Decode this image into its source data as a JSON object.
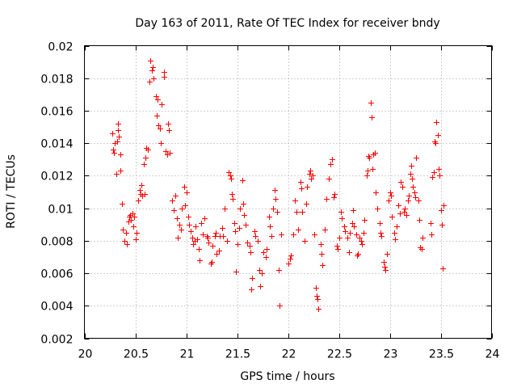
{
  "chart_data": {
    "type": "scatter",
    "title": "Day 163 of 2011, Rate Of TEC Index for receiver bndy",
    "xlabel": "GPS time / hours",
    "ylabel": "ROTI / TECUs",
    "xlim": [
      20,
      24
    ],
    "ylim": [
      0.002,
      0.02
    ],
    "xticks": [
      20,
      20.5,
      21,
      21.5,
      22,
      22.5,
      23,
      23.5,
      24
    ],
    "xtick_labels": [
      "20",
      "20.5",
      "21",
      "21.5",
      "22",
      "22.5",
      "23",
      "23.5",
      "24"
    ],
    "yticks": [
      0.002,
      0.004,
      0.006,
      0.008,
      0.01,
      0.012,
      0.014,
      0.016,
      0.018,
      0.02
    ],
    "ytick_labels": [
      "0.002",
      "0.004",
      "0.006",
      "0.008",
      "0.01",
      "0.012",
      "0.014",
      "0.016",
      "0.018",
      "0.02"
    ],
    "grid": true,
    "marker": "+",
    "color": "#ff0000",
    "series": [
      {
        "name": "ROTI",
        "points": [
          [
            20.27,
            0.0146
          ],
          [
            20.28,
            0.0136
          ],
          [
            20.29,
            0.0134
          ],
          [
            20.3,
            0.014
          ],
          [
            20.31,
            0.0121
          ],
          [
            20.32,
            0.0141
          ],
          [
            20.33,
            0.0152
          ],
          [
            20.33,
            0.0148
          ],
          [
            20.34,
            0.0144
          ],
          [
            20.35,
            0.0133
          ],
          [
            20.35,
            0.0123
          ],
          [
            20.37,
            0.0103
          ],
          [
            20.38,
            0.0087
          ],
          [
            20.39,
            0.008
          ],
          [
            20.41,
            0.0085
          ],
          [
            20.42,
            0.0078
          ],
          [
            20.43,
            0.0092
          ],
          [
            20.44,
            0.0095
          ],
          [
            20.45,
            0.0096
          ],
          [
            20.46,
            0.0093
          ],
          [
            20.47,
            0.0097
          ],
          [
            20.48,
            0.0089
          ],
          [
            20.49,
            0.0095
          ],
          [
            20.5,
            0.0081
          ],
          [
            20.51,
            0.0085
          ],
          [
            20.53,
            0.0105
          ],
          [
            20.54,
            0.0111
          ],
          [
            20.55,
            0.0109
          ],
          [
            20.56,
            0.0114
          ],
          [
            20.57,
            0.0108
          ],
          [
            20.58,
            0.0127
          ],
          [
            20.59,
            0.0109
          ],
          [
            20.6,
            0.0131
          ],
          [
            20.61,
            0.0137
          ],
          [
            20.62,
            0.0136
          ],
          [
            20.64,
            0.0178
          ],
          [
            20.65,
            0.0191
          ],
          [
            20.66,
            0.0185
          ],
          [
            20.67,
            0.0187
          ],
          [
            20.68,
            0.018
          ],
          [
            20.7,
            0.0169
          ],
          [
            20.71,
            0.0157
          ],
          [
            20.72,
            0.0167
          ],
          [
            20.73,
            0.0151
          ],
          [
            20.74,
            0.0149
          ],
          [
            20.75,
            0.014
          ],
          [
            20.76,
            0.0164
          ],
          [
            20.78,
            0.0184
          ],
          [
            20.78,
            0.0181
          ],
          [
            20.8,
            0.0135
          ],
          [
            20.81,
            0.0133
          ],
          [
            20.82,
            0.0152
          ],
          [
            20.83,
            0.0148
          ],
          [
            20.84,
            0.0134
          ],
          [
            20.86,
            0.0105
          ],
          [
            20.88,
            0.0099
          ],
          [
            20.89,
            0.0108
          ],
          [
            20.91,
            0.0094
          ],
          [
            20.92,
            0.0082
          ],
          [
            20.93,
            0.009
          ],
          [
            20.95,
            0.0087
          ],
          [
            20.96,
            0.01
          ],
          [
            20.98,
            0.0113
          ],
          [
            20.99,
            0.0102
          ],
          [
            21.0,
            0.011
          ],
          [
            21.02,
            0.0095
          ],
          [
            21.03,
            0.009
          ],
          [
            21.04,
            0.0086
          ],
          [
            21.06,
            0.0082
          ],
          [
            21.07,
            0.0078
          ],
          [
            21.08,
            0.008
          ],
          [
            21.09,
            0.0089
          ],
          [
            21.11,
            0.0081
          ],
          [
            21.12,
            0.0075
          ],
          [
            21.13,
            0.0068
          ],
          [
            21.15,
            0.0091
          ],
          [
            21.16,
            0.0084
          ],
          [
            21.18,
            0.0094
          ],
          [
            21.2,
            0.0083
          ],
          [
            21.21,
            0.0082
          ],
          [
            21.22,
            0.0079
          ],
          [
            21.24,
            0.0066
          ],
          [
            21.25,
            0.0067
          ],
          [
            21.26,
            0.0077
          ],
          [
            21.28,
            0.0083
          ],
          [
            21.29,
            0.0085
          ],
          [
            21.3,
            0.0072
          ],
          [
            21.32,
            0.0074
          ],
          [
            21.33,
            0.0083
          ],
          [
            21.35,
            0.0088
          ],
          [
            21.36,
            0.0083
          ],
          [
            21.38,
            0.01
          ],
          [
            21.4,
            0.008
          ],
          [
            21.42,
            0.0122
          ],
          [
            21.43,
            0.012
          ],
          [
            21.44,
            0.0118
          ],
          [
            21.45,
            0.0109
          ],
          [
            21.46,
            0.0106
          ],
          [
            21.47,
            0.0091
          ],
          [
            21.48,
            0.0086
          ],
          [
            21.49,
            0.0061
          ],
          [
            21.5,
            0.0078
          ],
          [
            21.52,
            0.0088
          ],
          [
            21.53,
            0.01
          ],
          [
            21.55,
            0.0117
          ],
          [
            21.56,
            0.0103
          ],
          [
            21.57,
            0.0096
          ],
          [
            21.58,
            0.009
          ],
          [
            21.6,
            0.0079
          ],
          [
            21.62,
            0.0077
          ],
          [
            21.63,
            0.0073
          ],
          [
            21.64,
            0.005
          ],
          [
            21.65,
            0.0057
          ],
          [
            21.67,
            0.0086
          ],
          [
            21.68,
            0.0083
          ],
          [
            21.7,
            0.008
          ],
          [
            21.72,
            0.0062
          ],
          [
            21.73,
            0.0052
          ],
          [
            21.74,
            0.006
          ],
          [
            21.76,
            0.0073
          ],
          [
            21.78,
            0.007
          ],
          [
            21.79,
            0.0075
          ],
          [
            21.81,
            0.0095
          ],
          [
            21.82,
            0.0089
          ],
          [
            21.84,
            0.0083
          ],
          [
            21.85,
            0.01
          ],
          [
            21.87,
            0.0111
          ],
          [
            21.88,
            0.0106
          ],
          [
            21.89,
            0.0098
          ],
          [
            21.91,
            0.0062
          ],
          [
            21.92,
            0.004
          ],
          [
            21.93,
            0.0084
          ],
          [
            22.0,
            0.0066
          ],
          [
            22.02,
            0.0069
          ],
          [
            22.03,
            0.0071
          ],
          [
            22.05,
            0.0084
          ],
          [
            22.07,
            0.0105
          ],
          [
            22.08,
            0.0098
          ],
          [
            22.1,
            0.0087
          ],
          [
            22.12,
            0.0116
          ],
          [
            22.13,
            0.0112
          ],
          [
            22.14,
            0.0098
          ],
          [
            22.16,
            0.008
          ],
          [
            22.18,
            0.0103
          ],
          [
            22.19,
            0.0113
          ],
          [
            22.21,
            0.0121
          ],
          [
            22.22,
            0.0123
          ],
          [
            22.23,
            0.0118
          ],
          [
            22.24,
            0.012
          ],
          [
            22.26,
            0.0084
          ],
          [
            22.27,
            0.0051
          ],
          [
            22.28,
            0.0046
          ],
          [
            22.29,
            0.0044
          ],
          [
            22.3,
            0.0038
          ],
          [
            22.32,
            0.0078
          ],
          [
            22.33,
            0.0072
          ],
          [
            22.34,
            0.0065
          ],
          [
            22.36,
            0.0087
          ],
          [
            22.38,
            0.0106
          ],
          [
            22.4,
            0.0118
          ],
          [
            22.42,
            0.0127
          ],
          [
            22.43,
            0.013
          ],
          [
            22.45,
            0.0107
          ],
          [
            22.46,
            0.0109
          ],
          [
            22.48,
            0.0077
          ],
          [
            22.49,
            0.0075
          ],
          [
            22.5,
            0.0082
          ],
          [
            22.52,
            0.0098
          ],
          [
            22.53,
            0.0094
          ],
          [
            22.55,
            0.0089
          ],
          [
            22.56,
            0.0086
          ],
          [
            22.58,
            0.0082
          ],
          [
            22.6,
            0.0073
          ],
          [
            22.61,
            0.0085
          ],
          [
            22.63,
            0.0091
          ],
          [
            22.64,
            0.0099
          ],
          [
            22.65,
            0.0089
          ],
          [
            22.67,
            0.0084
          ],
          [
            22.68,
            0.0071
          ],
          [
            22.69,
            0.0072
          ],
          [
            22.7,
            0.0082
          ],
          [
            22.72,
            0.008
          ],
          [
            22.73,
            0.0078
          ],
          [
            22.74,
            0.0085
          ],
          [
            22.75,
            0.0093
          ],
          [
            22.77,
            0.012
          ],
          [
            22.78,
            0.0123
          ],
          [
            22.79,
            0.0132
          ],
          [
            22.8,
            0.0131
          ],
          [
            22.81,
            0.0165
          ],
          [
            22.82,
            0.0156
          ],
          [
            22.83,
            0.0124
          ],
          [
            22.84,
            0.0133
          ],
          [
            22.85,
            0.0134
          ],
          [
            22.86,
            0.011
          ],
          [
            22.88,
            0.01
          ],
          [
            22.9,
            0.0091
          ],
          [
            22.91,
            0.0085
          ],
          [
            22.92,
            0.0083
          ],
          [
            22.94,
            0.0067
          ],
          [
            22.95,
            0.0064
          ],
          [
            22.96,
            0.0062
          ],
          [
            22.97,
            0.0072
          ],
          [
            22.99,
            0.0105
          ],
          [
            23.0,
            0.011
          ],
          [
            23.01,
            0.0108
          ],
          [
            23.02,
            0.0095
          ],
          [
            23.04,
            0.0085
          ],
          [
            23.05,
            0.0081
          ],
          [
            23.07,
            0.0089
          ],
          [
            23.08,
            0.0102
          ],
          [
            23.1,
            0.0097
          ],
          [
            23.11,
            0.0116
          ],
          [
            23.12,
            0.0113
          ],
          [
            23.14,
            0.0098
          ],
          [
            23.15,
            0.01
          ],
          [
            23.16,
            0.0096
          ],
          [
            23.18,
            0.0105
          ],
          [
            23.19,
            0.0108
          ],
          [
            23.2,
            0.0121
          ],
          [
            23.21,
            0.0126
          ],
          [
            23.22,
            0.0118
          ],
          [
            23.23,
            0.0113
          ],
          [
            23.24,
            0.011
          ],
          [
            23.25,
            0.0107
          ],
          [
            23.26,
            0.0131
          ],
          [
            23.28,
            0.0105
          ],
          [
            23.29,
            0.0093
          ],
          [
            23.3,
            0.0076
          ],
          [
            23.31,
            0.0075
          ],
          [
            23.32,
            0.0082
          ],
          [
            23.4,
            0.0091
          ],
          [
            23.41,
            0.0084
          ],
          [
            23.42,
            0.0119
          ],
          [
            23.43,
            0.0122
          ],
          [
            23.44,
            0.0141
          ],
          [
            23.45,
            0.014
          ],
          [
            23.46,
            0.0153
          ],
          [
            23.47,
            0.0145
          ],
          [
            23.48,
            0.0124
          ],
          [
            23.49,
            0.012
          ],
          [
            23.5,
            0.0099
          ],
          [
            23.51,
            0.009
          ],
          [
            23.52,
            0.0063
          ],
          [
            23.53,
            0.0102
          ]
        ]
      }
    ]
  }
}
